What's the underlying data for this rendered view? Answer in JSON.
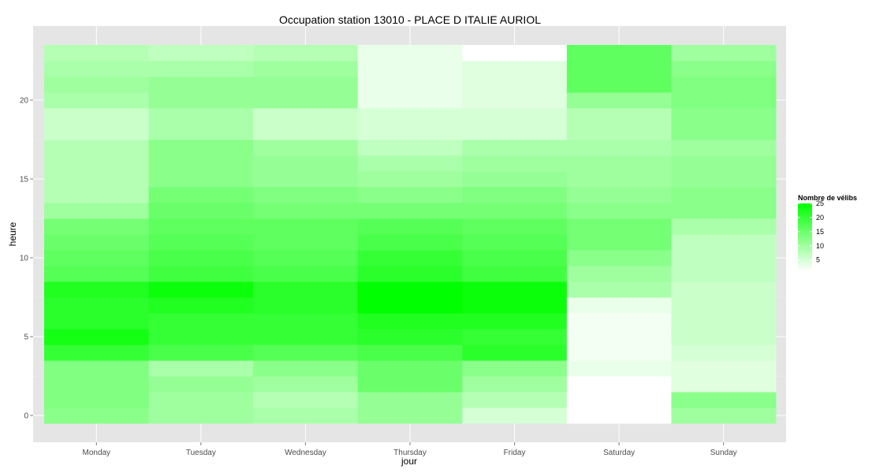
{
  "chart_data": {
    "type": "heatmap",
    "title": "Occupation station 13010 - PLACE D ITALIE AURIOL",
    "xlabel": "jour",
    "ylabel": "heure",
    "x_categories": [
      "Monday",
      "Tuesday",
      "Wednesday",
      "Thursday",
      "Friday",
      "Saturday",
      "Sunday"
    ],
    "y_values": [
      0,
      1,
      2,
      3,
      4,
      5,
      6,
      7,
      8,
      9,
      10,
      11,
      12,
      13,
      14,
      15,
      16,
      17,
      18,
      19,
      20,
      21,
      22,
      23
    ],
    "y_ticks": [
      0,
      5,
      10,
      15,
      20
    ],
    "ylim": [
      -0.5,
      23.5
    ],
    "grid": true,
    "legend": {
      "title": "Nombre de vélibs",
      "position": "right",
      "ticks": [
        5,
        10,
        15,
        20,
        25
      ],
      "range": [
        1,
        25
      ],
      "low_color": "#ffffff",
      "high_color": "#00ff00"
    },
    "panel_color": "#e5e5e5",
    "series": [
      {
        "x": "Monday",
        "values": [
          12,
          13,
          13,
          13,
          20,
          23,
          21,
          21,
          22,
          17,
          16,
          15,
          14,
          10,
          8,
          8,
          8,
          8,
          6,
          6,
          9,
          10,
          9,
          8
        ]
      },
      {
        "x": "Tuesday",
        "values": [
          10,
          10,
          11,
          9,
          18,
          20,
          20,
          22,
          24,
          19,
          18,
          17,
          16,
          15,
          14,
          12,
          12,
          12,
          9,
          9,
          11,
          11,
          9,
          7
        ]
      },
      {
        "x": "Wednesday",
        "values": [
          9,
          8,
          10,
          12,
          17,
          20,
          20,
          21,
          21,
          18,
          17,
          16,
          16,
          14,
          13,
          11,
          11,
          10,
          6,
          6,
          11,
          11,
          10,
          8
        ]
      },
      {
        "x": "Thursday",
        "values": [
          11,
          11,
          15,
          15,
          18,
          21,
          22,
          25,
          25,
          21,
          20,
          18,
          17,
          14,
          12,
          10,
          9,
          7,
          5,
          5,
          3,
          3,
          3,
          3
        ]
      },
      {
        "x": "Friday",
        "values": [
          5,
          8,
          10,
          12,
          21,
          20,
          22,
          24,
          24,
          19,
          18,
          17,
          16,
          14,
          13,
          11,
          10,
          9,
          5,
          5,
          4,
          4,
          4,
          1
        ]
      },
      {
        "x": "Saturday",
        "values": [
          1,
          1,
          1,
          3,
          2,
          2,
          2,
          3,
          9,
          10,
          12,
          14,
          14,
          12,
          11,
          10,
          10,
          9,
          8,
          8,
          11,
          16,
          16,
          16
        ]
      },
      {
        "x": "Sunday",
        "values": [
          10,
          12,
          4,
          4,
          5,
          6,
          6,
          6,
          6,
          7,
          7,
          7,
          9,
          12,
          12,
          11,
          11,
          10,
          12,
          12,
          13,
          13,
          12,
          10
        ]
      }
    ]
  }
}
